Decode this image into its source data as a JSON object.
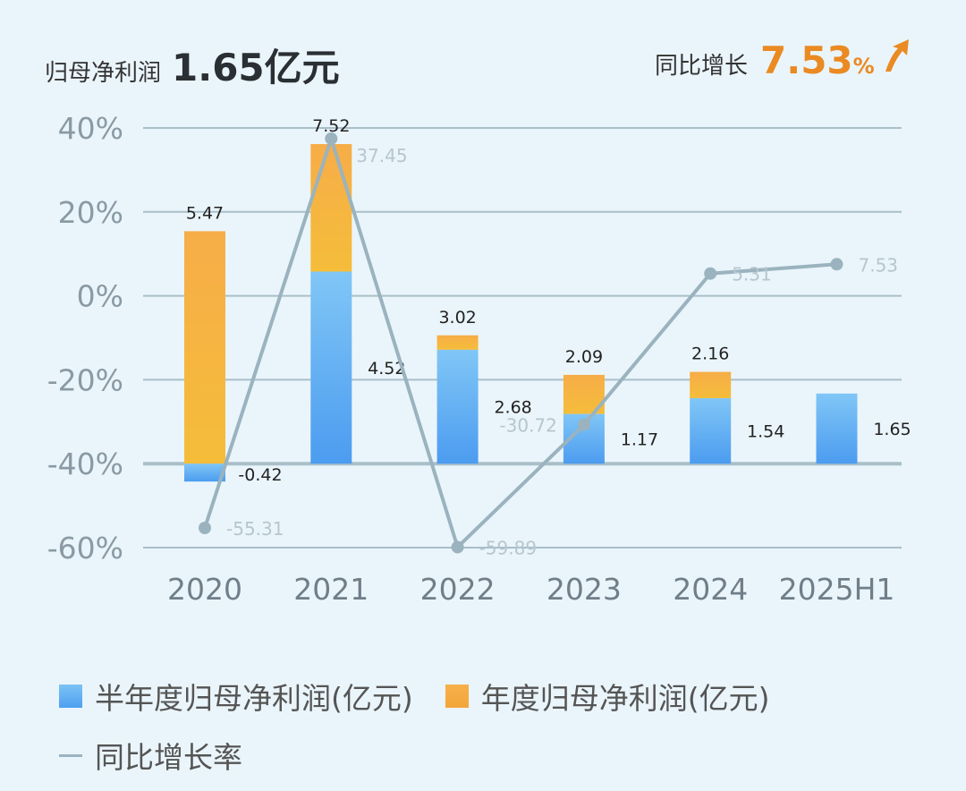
{
  "header": {
    "profit_label": "归母净利润",
    "profit_value": "1.65亿元",
    "growth_label": "同比增长",
    "growth_value": "7.53",
    "growth_unit": "%",
    "growth_icon": "arrow-up-icon"
  },
  "colors": {
    "half_year": "#5aa9f2",
    "annual": "#f4aa40",
    "line": "#9ab3bf",
    "accent": "#ea8a23"
  },
  "chart_data": {
    "type": "bar+line",
    "categories": [
      "2020",
      "2021",
      "2022",
      "2023",
      "2024",
      "2025H1"
    ],
    "series": [
      {
        "name": "半年度归母净利润(亿元)",
        "type": "bar",
        "values": [
          -0.42,
          4.52,
          2.68,
          1.17,
          1.54,
          1.65
        ],
        "labels": [
          "-0.42",
          "4.52",
          "2.68",
          "1.17",
          "1.54",
          "1.65"
        ]
      },
      {
        "name": "年度归母净利润(亿元)",
        "type": "bar",
        "values": [
          5.47,
          7.52,
          3.02,
          2.09,
          2.16,
          null
        ],
        "labels": [
          "5.47",
          "7.52",
          "3.02",
          "2.09",
          "2.16",
          ""
        ]
      },
      {
        "name": "同比增长率",
        "type": "line",
        "values": [
          -55.31,
          37.45,
          -59.89,
          -30.72,
          5.31,
          7.53
        ],
        "labels": [
          "-55.31",
          "37.45",
          "-59.89",
          "-30.72",
          "5.31",
          "7.53"
        ]
      }
    ],
    "y_ticks": [
      "40%",
      "20%",
      "0%",
      "-20%",
      "-40%",
      "-60%"
    ],
    "ylim": [
      -60,
      40
    ],
    "grid": true,
    "legend_position": "bottom"
  },
  "legend": {
    "half_year": "半年度归母净利润(亿元)",
    "annual": "年度归母净利润(亿元)",
    "line": "同比增长率"
  }
}
